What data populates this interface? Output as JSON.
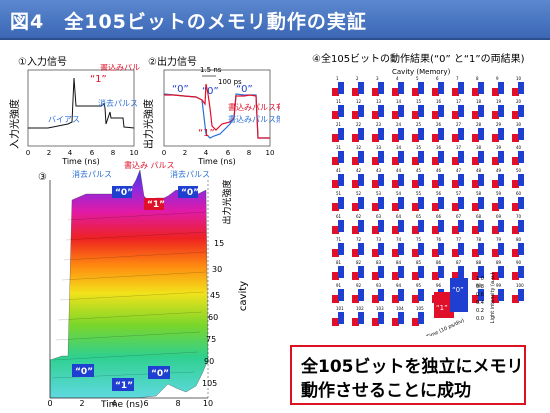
{
  "header": {
    "title": "図4　全105ビットのメモリ動作の実証"
  },
  "panel1": {
    "label": "①入力信号",
    "ylabel": "入力光強度",
    "write_pulse": "書込みパルス",
    "one": "“1”",
    "erase_pulse": "消去パルス",
    "bias": "バイアス",
    "xlabel": "Time (ns)",
    "xticks": [
      "0",
      "2",
      "4",
      "6",
      "8",
      "10"
    ]
  },
  "panel2": {
    "label": "②出力信号",
    "ylabel": "出力光強度",
    "ns15": "1.5 ns",
    "ps100": "100 ps",
    "zero_a": "“0”",
    "zero_b": "“0”",
    "zero_c": "“0”",
    "one": "“1”",
    "with_write": "書込みパルス有",
    "without_write": "書込みパルス無",
    "xlabel": "Time (ns)",
    "xticks": [
      "0",
      "2",
      "4",
      "6",
      "8",
      "10"
    ]
  },
  "panel3": {
    "label": "③",
    "ylabel": "出力光強度",
    "erase_a": "消去パルス",
    "write": "書込み パルス",
    "erase_b": "消去パルス",
    "zero_top_a": "“0”",
    "one_top": "“1”",
    "zero_top_b": "“0”",
    "zero_bot_a": "“0”",
    "one_bot": "“1”",
    "zero_bot_b": "“0”",
    "cavity": "cavity",
    "cavity_ticks": [
      "15",
      "30",
      "45",
      "60",
      "75",
      "90",
      "105"
    ],
    "xlabel": "Time (ns)",
    "xticks": [
      "0",
      "2",
      "4",
      "6",
      "8",
      "10"
    ]
  },
  "panel4": {
    "label": "④全105ビットの動作結果(“0” と“1”の両結果)",
    "header": "Cavity (Memory)",
    "legend_zero": "“0”",
    "legend_one": "“1”",
    "legend_axis": "Light intensity (a.u.)",
    "legend_ticks": [
      "1.0",
      "0.8",
      "0.6",
      "0.4",
      "0.2",
      "0.0"
    ],
    "legend_time": "Time (10 ps/div)"
  },
  "message": {
    "line1": "全105ビットを独立にメモリ",
    "line2": "動作させることに成功"
  },
  "colors": {
    "title_bg": "#3b67b5",
    "write_red": "#e0102a",
    "erase_blue": "#2a6fd6",
    "zero_blue": "#1f3fd0"
  }
}
